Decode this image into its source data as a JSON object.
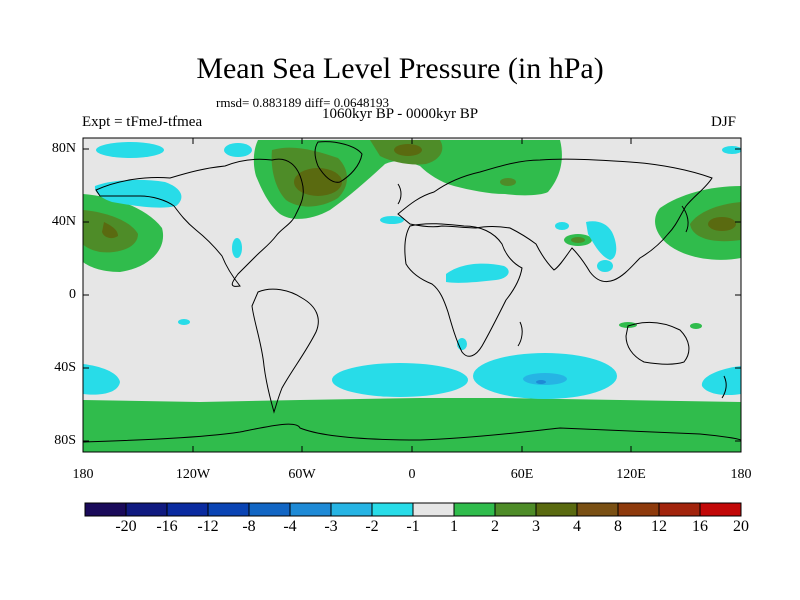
{
  "title": "Mean Sea Level Pressure (in hPa)",
  "stats_text": "rmsd= 0.883189 diff= 0.0648193",
  "period": "1060kyr BP - 0000kyr BP",
  "experiment": "Expt = tFmeJ-tfmea",
  "season": "DJF",
  "lat_labels": [
    "80N",
    "40N",
    "0",
    "40S",
    "80S"
  ],
  "lon_labels": [
    "180",
    "120W",
    "60W",
    "0",
    "60E",
    "120E",
    "180"
  ],
  "colorbar": {
    "levels": [
      "-20",
      "-16",
      "-12",
      "-8",
      "-4",
      "-3",
      "-2",
      "-1",
      "1",
      "2",
      "3",
      "4",
      "8",
      "12",
      "16",
      "20"
    ],
    "colors": [
      "#1a0a5a",
      "#101a80",
      "#0a2ba0",
      "#0a44b4",
      "#1266c4",
      "#1e8ad6",
      "#26b4e4",
      "#28dce8",
      "#e6e6e6",
      "#30bc4c",
      "#4e8c28",
      "#5a6a10",
      "#7a5014",
      "#8e3a0c",
      "#a2240c",
      "#c20808"
    ]
  },
  "map_colors": {
    "neutral": "#e6e6e6",
    "pos1": "#30bc4c",
    "pos2": "#4e8c28",
    "pos3": "#5a6a10",
    "pos4": "#7a5014",
    "neg1": "#28dce8",
    "neg2": "#26b4e4",
    "neg3": "#1e8ad6",
    "coast": "#000000"
  }
}
